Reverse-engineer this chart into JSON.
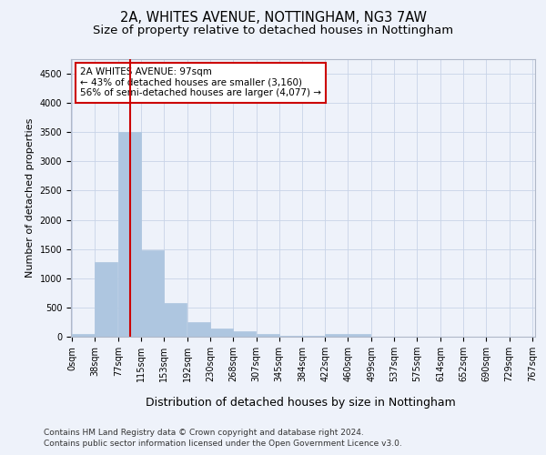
{
  "title": "2A, WHITES AVENUE, NOTTINGHAM, NG3 7AW",
  "subtitle": "Size of property relative to detached houses in Nottingham",
  "xlabel": "Distribution of detached houses by size in Nottingham",
  "ylabel": "Number of detached properties",
  "bar_color": "#aec6e0",
  "bar_edge_color": "#aec6e0",
  "grid_color": "#c8d4e8",
  "background_color": "#eef2fa",
  "vline_x": 97,
  "vline_color": "#cc0000",
  "annotation_text": "2A WHITES AVENUE: 97sqm\n← 43% of detached houses are smaller (3,160)\n56% of semi-detached houses are larger (4,077) →",
  "annotation_box_color": "#ffffff",
  "annotation_border_color": "#cc0000",
  "bins_left": [
    0,
    38,
    77,
    115,
    153,
    192,
    230,
    268,
    307,
    345,
    384,
    422,
    460,
    499,
    537,
    575,
    614,
    652,
    690,
    729
  ],
  "bin_width": 38,
  "bar_heights": [
    40,
    1270,
    3500,
    1480,
    575,
    250,
    140,
    90,
    50,
    20,
    10,
    50,
    50,
    0,
    0,
    0,
    0,
    0,
    0,
    0
  ],
  "ylim": [
    0,
    4750
  ],
  "yticks": [
    0,
    500,
    1000,
    1500,
    2000,
    2500,
    3000,
    3500,
    4000,
    4500
  ],
  "xtick_labels": [
    "0sqm",
    "38sqm",
    "77sqm",
    "115sqm",
    "153sqm",
    "192sqm",
    "230sqm",
    "268sqm",
    "307sqm",
    "345sqm",
    "384sqm",
    "422sqm",
    "460sqm",
    "499sqm",
    "537sqm",
    "575sqm",
    "614sqm",
    "652sqm",
    "690sqm",
    "729sqm",
    "767sqm"
  ],
  "footnote_line1": "Contains HM Land Registry data © Crown copyright and database right 2024.",
  "footnote_line2": "Contains public sector information licensed under the Open Government Licence v3.0.",
  "title_fontsize": 10.5,
  "subtitle_fontsize": 9.5,
  "xlabel_fontsize": 9,
  "ylabel_fontsize": 8,
  "tick_fontsize": 7,
  "annotation_fontsize": 7.5,
  "footnote_fontsize": 6.5
}
